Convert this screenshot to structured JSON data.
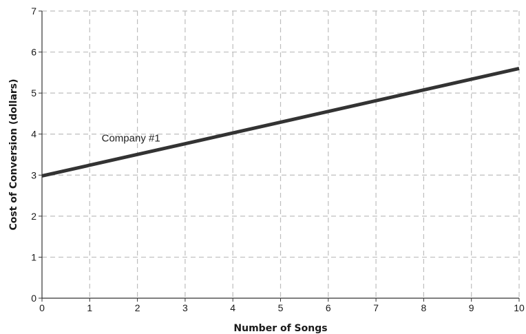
{
  "chart_data": {
    "type": "line",
    "xlabel": "Number of Songs",
    "ylabel": "Cost of Conversion (dollars)",
    "xlim": [
      0,
      10
    ],
    "ylim": [
      0,
      7
    ],
    "xticks": [
      0,
      1,
      2,
      3,
      4,
      5,
      6,
      7,
      8,
      9,
      10
    ],
    "yticks": [
      0,
      1,
      2,
      3,
      4,
      5,
      6,
      7
    ],
    "grid": true,
    "grid_style": "dashed",
    "series": [
      {
        "name": "Company #1",
        "x": [
          0,
          10
        ],
        "y": [
          2.98,
          5.6
        ],
        "color": "#333333"
      }
    ],
    "annotations": [
      {
        "text": "Company #1",
        "x": 1.25,
        "y": 3.82
      }
    ]
  }
}
